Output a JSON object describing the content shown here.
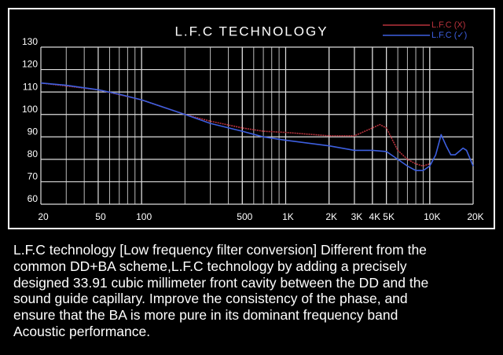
{
  "chart_data": {
    "type": "line",
    "title": "L.F.C TECHNOLOGY",
    "x_scale": "log",
    "xlim": [
      20,
      20000
    ],
    "xticks": [
      20,
      50,
      100,
      500,
      {
        "value": 1000,
        "label": "1K"
      },
      {
        "value": 2000,
        "label": "2K"
      },
      {
        "value": 3000,
        "label": "3K"
      },
      {
        "value": 4000,
        "label": "4K"
      },
      {
        "value": 5000,
        "label": "5K"
      },
      {
        "value": 10000,
        "label": "10K"
      },
      {
        "value": 20000,
        "label": "20K"
      }
    ],
    "ylim": [
      60,
      130
    ],
    "yticks": [
      60,
      70,
      80,
      90,
      100,
      110,
      120,
      130
    ],
    "grid": true,
    "legend": "top-right",
    "series": [
      {
        "name": "L.F.C (X)",
        "color": "#b8323c",
        "x": [
          20,
          50,
          100,
          200,
          300,
          500,
          700,
          1000,
          2000,
          3000,
          4000,
          4500,
          5000,
          6000,
          7000,
          8000,
          9000,
          10000
        ],
        "values": [
          114,
          111,
          106.5,
          100,
          97,
          94,
          92.5,
          92,
          90.5,
          90.5,
          94,
          95.5,
          94,
          84,
          80,
          78,
          77,
          78
        ]
      },
      {
        "name": "L.F.C (✓)",
        "color": "#3d5fe0",
        "x": [
          20,
          30,
          50,
          70,
          100,
          200,
          300,
          500,
          700,
          1000,
          2000,
          3000,
          4000,
          5000,
          6000,
          7000,
          8000,
          9000,
          10000,
          11000,
          12000,
          13000,
          14000,
          15000,
          17000,
          18000,
          20000
        ],
        "values": [
          114,
          113,
          111,
          109,
          106.5,
          100,
          96,
          92.5,
          90,
          88.5,
          86,
          84,
          84,
          83.5,
          80,
          77,
          75,
          75,
          77,
          82,
          91,
          86,
          82,
          82,
          85,
          84,
          77
        ]
      }
    ]
  },
  "description": [
    "L.F.C technology [Low frequency filter conversion] Different from the",
    "common DD+BA scheme,L.F.C technology by adding a precisely",
    "designed 33.91 cubic millimeter front cavity between the DD and the",
    "sound guide capillary. Improve the consistency of the phase, and",
    "ensure that the BA is more pure in its dominant frequency band",
    "Acoustic performance."
  ]
}
